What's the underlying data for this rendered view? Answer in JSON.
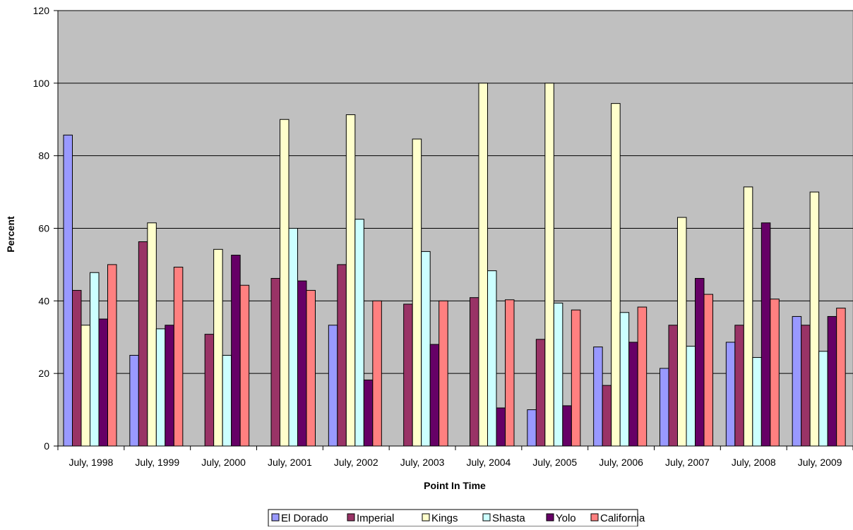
{
  "chart_data": {
    "type": "bar",
    "title": "",
    "xlabel": "Point In Time",
    "ylabel": "Percent",
    "ylim": [
      0,
      120
    ],
    "yticks": [
      0,
      20,
      40,
      60,
      80,
      100,
      120
    ],
    "grid": true,
    "legend_position": "bottom",
    "plot_background": "#c0c0c0",
    "categories": [
      "July, 1998",
      "July, 1999",
      "July, 2000",
      "July, 2001",
      "July, 2002",
      "July, 2003",
      "July, 2004",
      "July, 2005",
      "July, 2006",
      "July, 2007",
      "July, 2008",
      "July, 2009"
    ],
    "series": [
      {
        "name": "El Dorado",
        "color": "#9999ff",
        "values": [
          85.7,
          25.0,
          0,
          0,
          33.3,
          0,
          0,
          10.0,
          27.3,
          21.4,
          28.6,
          35.7
        ]
      },
      {
        "name": "Imperial",
        "color": "#993366",
        "values": [
          42.9,
          56.3,
          30.8,
          46.2,
          50.0,
          39.1,
          40.9,
          29.4,
          16.7,
          33.3,
          33.3,
          33.3
        ]
      },
      {
        "name": "Kings",
        "color": "#ffffcc",
        "values": [
          33.3,
          61.5,
          54.2,
          90.0,
          91.3,
          84.6,
          100.0,
          100.0,
          94.4,
          63.0,
          71.4,
          70.0
        ]
      },
      {
        "name": "Shasta",
        "color": "#ccffff",
        "values": [
          47.8,
          32.3,
          25.0,
          60.0,
          62.5,
          53.6,
          48.3,
          39.4,
          36.8,
          27.5,
          24.4,
          26.1
        ]
      },
      {
        "name": "Yolo",
        "color": "#660066",
        "values": [
          35.0,
          33.3,
          52.6,
          45.5,
          18.2,
          28.0,
          10.5,
          11.1,
          28.6,
          46.2,
          61.5,
          35.7
        ]
      },
      {
        "name": "California",
        "color": "#ff8080",
        "values": [
          50.0,
          49.3,
          44.3,
          42.9,
          40.0,
          40.0,
          40.3,
          37.5,
          38.3,
          41.8,
          40.5,
          38.0
        ]
      }
    ]
  }
}
